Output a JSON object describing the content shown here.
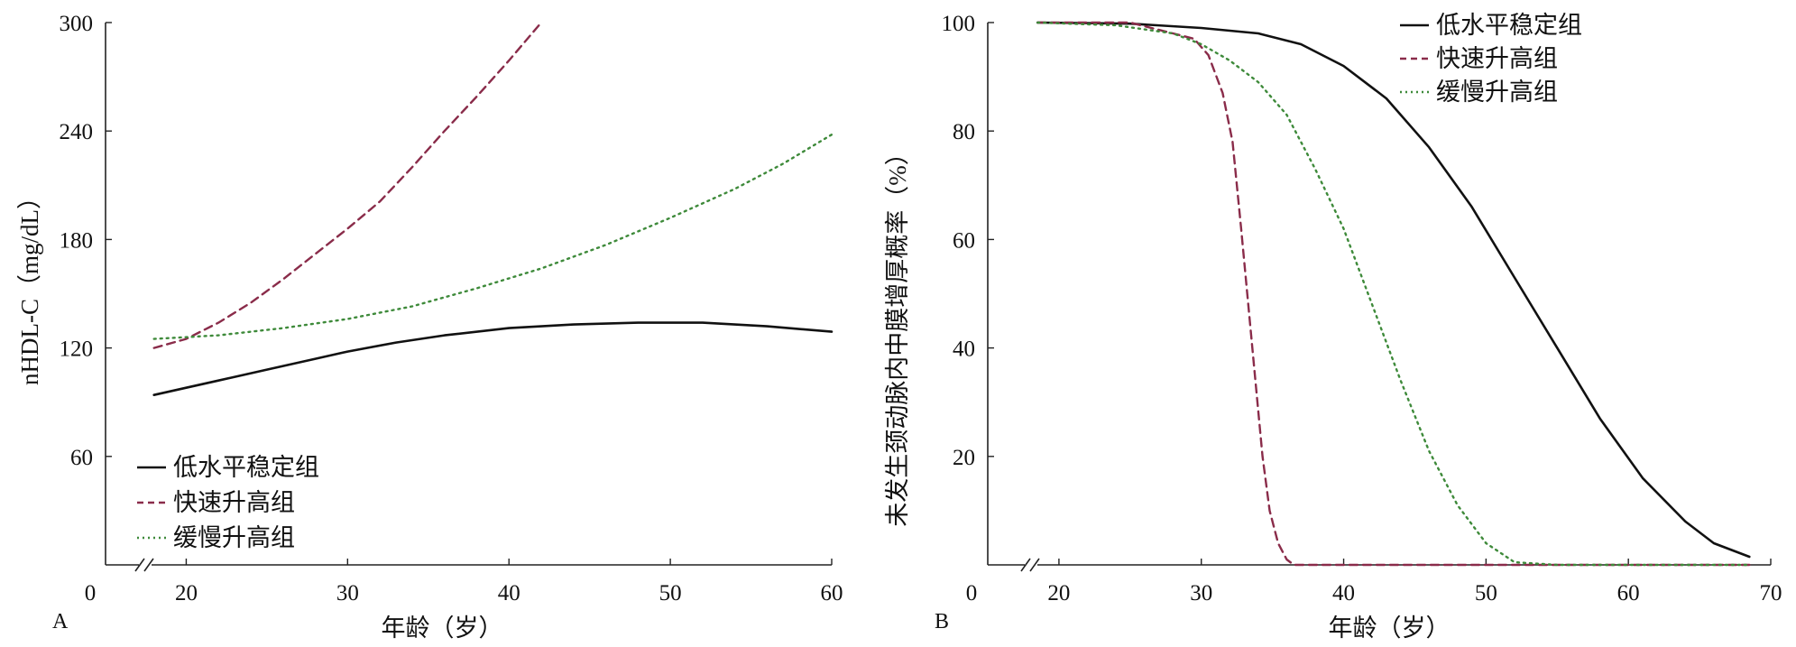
{
  "chart_data": [
    {
      "panel_label": "A",
      "type": "line",
      "xlabel": "年龄（岁）",
      "ylabel": "nHDL-C（mg/dL）",
      "x_origin_label": "0",
      "xlim": [
        15,
        60
      ],
      "ylim": [
        0,
        300
      ],
      "x_ticks": [
        20,
        30,
        40,
        50,
        60
      ],
      "y_ticks": [
        60,
        120,
        180,
        240,
        300
      ],
      "legend_position": "bottom-left",
      "series": [
        {
          "name": "低水平稳定组",
          "style": "solid",
          "color": "#111111",
          "points": [
            [
              18,
              94
            ],
            [
              20,
              98
            ],
            [
              22,
              102
            ],
            [
              25,
              108
            ],
            [
              28,
              114
            ],
            [
              30,
              118
            ],
            [
              33,
              123
            ],
            [
              36,
              127
            ],
            [
              40,
              131
            ],
            [
              44,
              133
            ],
            [
              48,
              134
            ],
            [
              52,
              134
            ],
            [
              56,
              132
            ],
            [
              60,
              129
            ]
          ]
        },
        {
          "name": "快速升高组",
          "style": "dashed",
          "color": "#8a2c4a",
          "points": [
            [
              18,
              120
            ],
            [
              20,
              125
            ],
            [
              22,
              134
            ],
            [
              24,
              145
            ],
            [
              26,
              158
            ],
            [
              28,
              172
            ],
            [
              30,
              186
            ],
            [
              32,
              201
            ],
            [
              34,
              220
            ],
            [
              36,
              240
            ],
            [
              38,
              259
            ],
            [
              40,
              279
            ],
            [
              42,
              300
            ]
          ]
        },
        {
          "name": "缓慢升高组",
          "style": "dotted",
          "color": "#3e8a3a",
          "points": [
            [
              18,
              125
            ],
            [
              22,
              127
            ],
            [
              26,
              131
            ],
            [
              30,
              136
            ],
            [
              34,
              143
            ],
            [
              38,
              153
            ],
            [
              42,
              164
            ],
            [
              46,
              177
            ],
            [
              50,
              192
            ],
            [
              54,
              208
            ],
            [
              57,
              222
            ],
            [
              60,
              238
            ]
          ]
        }
      ]
    },
    {
      "panel_label": "B",
      "type": "line",
      "xlabel": "年龄（岁）",
      "ylabel": "未发生颈动脉内中膜增厚概率（%）",
      "x_origin_label": "0",
      "xlim": [
        15,
        70
      ],
      "ylim": [
        0,
        100
      ],
      "x_ticks": [
        20,
        30,
        40,
        50,
        60,
        70
      ],
      "y_ticks": [
        20,
        40,
        60,
        80,
        100
      ],
      "legend_position": "top-right",
      "series": [
        {
          "name": "低水平稳定组",
          "style": "solid",
          "color": "#111111",
          "points": [
            [
              18.5,
              100
            ],
            [
              25,
              99.8
            ],
            [
              30,
              99
            ],
            [
              34,
              98
            ],
            [
              37,
              96
            ],
            [
              40,
              92
            ],
            [
              43,
              86
            ],
            [
              46,
              77
            ],
            [
              49,
              66
            ],
            [
              52,
              53
            ],
            [
              55,
              40
            ],
            [
              58,
              27
            ],
            [
              61,
              16
            ],
            [
              64,
              8
            ],
            [
              66,
              4
            ],
            [
              68.5,
              1.5
            ]
          ]
        },
        {
          "name": "快速升高组",
          "style": "dashed",
          "color": "#8a2c4a",
          "points": [
            [
              18.5,
              100
            ],
            [
              25,
              100
            ],
            [
              28,
              98
            ],
            [
              29.5,
              97
            ],
            [
              30.5,
              94
            ],
            [
              31.5,
              87
            ],
            [
              32.2,
              78
            ],
            [
              32.8,
              62
            ],
            [
              33.3,
              48
            ],
            [
              33.8,
              34
            ],
            [
              34.3,
              20
            ],
            [
              34.8,
              10
            ],
            [
              35.4,
              4
            ],
            [
              36,
              1
            ],
            [
              36.5,
              0
            ],
            [
              40,
              0
            ],
            [
              50,
              0
            ],
            [
              60,
              0
            ],
            [
              68.5,
              0
            ]
          ]
        },
        {
          "name": "缓慢升高组",
          "style": "dotted",
          "color": "#3e8a3a",
          "points": [
            [
              18.5,
              100
            ],
            [
              24,
              99.5
            ],
            [
              28,
              98
            ],
            [
              30,
              96
            ],
            [
              32,
              93
            ],
            [
              34,
              89
            ],
            [
              36,
              83
            ],
            [
              38,
              73
            ],
            [
              40,
              62
            ],
            [
              42,
              48
            ],
            [
              44,
              34
            ],
            [
              46,
              21
            ],
            [
              48,
              11
            ],
            [
              50,
              4
            ],
            [
              52,
              0.5
            ],
            [
              55,
              0
            ],
            [
              60,
              0
            ],
            [
              68.5,
              0
            ]
          ]
        }
      ]
    }
  ]
}
